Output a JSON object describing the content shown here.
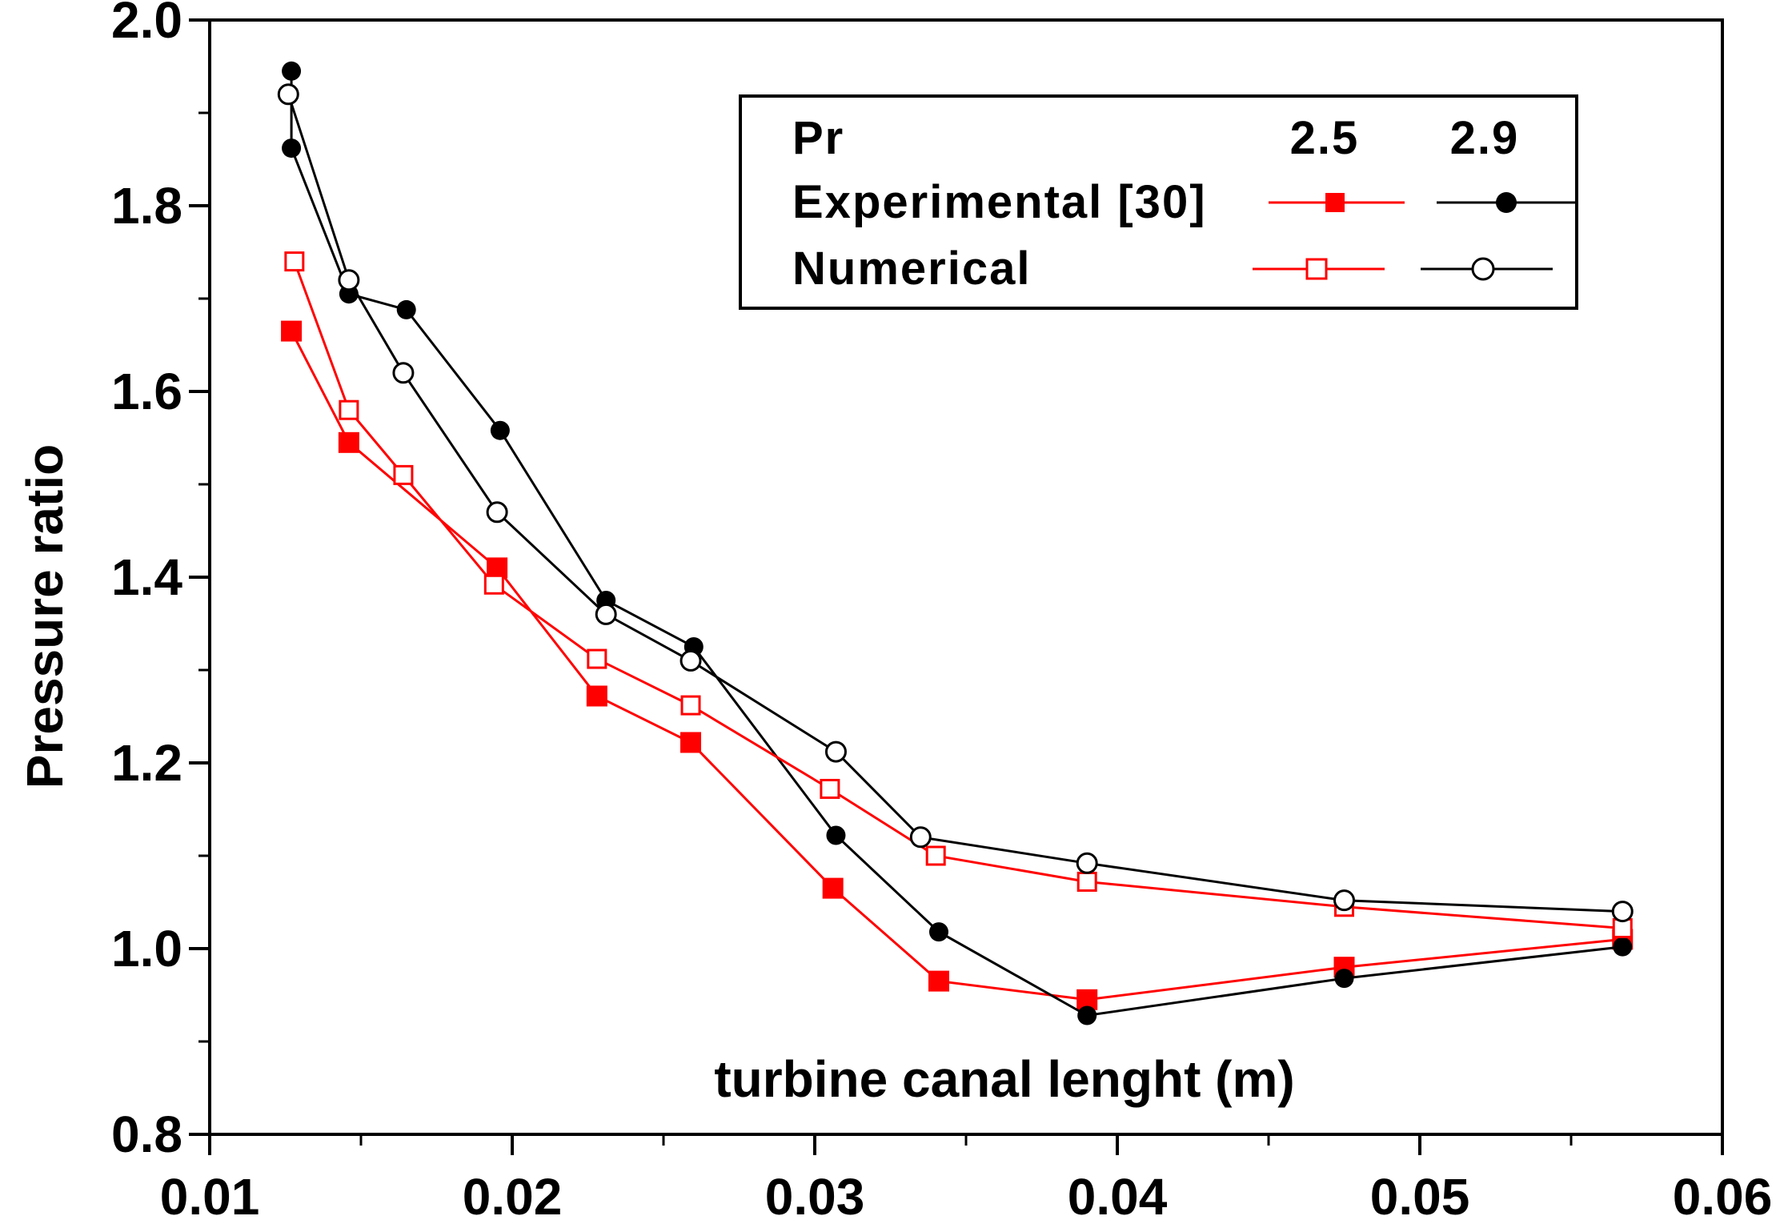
{
  "chart_data": {
    "type": "line",
    "title": "",
    "xlabel": "turbine canal lenght (m)",
    "ylabel": "Pressure ratio",
    "xlim": [
      0.01,
      0.06
    ],
    "ylim": [
      0.8,
      2.0
    ],
    "xticks": [
      "0.01",
      "0.02",
      "0.03",
      "0.04",
      "0.05",
      "0.06"
    ],
    "yticks": [
      "0.8",
      "1.0",
      "1.2",
      "1.4",
      "1.6",
      "1.8",
      "2.0"
    ],
    "grid": false,
    "legend": {
      "position": "top-right",
      "header_label": "Pr",
      "col1_label": "2.5",
      "col2_label": "2.9",
      "row1_label": "Experimental [30]",
      "row2_label": "Numerical"
    },
    "series": [
      {
        "name": "Experimental [30], Pr 2.5",
        "color": "#ff0000",
        "marker": "filled-square",
        "x": [
          0.0127,
          0.0146,
          0.0195,
          0.0228,
          0.0259,
          0.0306,
          0.0341,
          0.039,
          0.0475,
          0.0567
        ],
        "y": [
          1.665,
          1.545,
          1.41,
          1.272,
          1.222,
          1.065,
          0.965,
          0.945,
          0.98,
          1.01
        ]
      },
      {
        "name": "Experimental [30], Pr 2.9",
        "color": "#000000",
        "marker": "filled-circle",
        "x": [
          0.0127,
          0.0127,
          0.0146,
          0.0165,
          0.0196,
          0.0231,
          0.026,
          0.0307,
          0.0341,
          0.039,
          0.0475,
          0.0567
        ],
        "y": [
          1.945,
          1.862,
          1.705,
          1.688,
          1.558,
          1.375,
          1.325,
          1.122,
          1.018,
          0.928,
          0.968,
          1.002
        ]
      },
      {
        "name": "Numerical, Pr 2.5",
        "color": "#ff0000",
        "marker": "open-square",
        "x": [
          0.0128,
          0.0146,
          0.0164,
          0.0194,
          0.0228,
          0.0259,
          0.0305,
          0.034,
          0.039,
          0.0475,
          0.0567
        ],
        "y": [
          1.74,
          1.58,
          1.51,
          1.392,
          1.312,
          1.262,
          1.172,
          1.1,
          1.072,
          1.045,
          1.022
        ]
      },
      {
        "name": "Numerical, Pr 2.9",
        "color": "#000000",
        "marker": "open-circle",
        "x": [
          0.0126,
          0.0146,
          0.0164,
          0.0195,
          0.0231,
          0.0259,
          0.0307,
          0.0335,
          0.039,
          0.0475,
          0.0567
        ],
        "y": [
          1.92,
          1.72,
          1.62,
          1.47,
          1.36,
          1.31,
          1.212,
          1.12,
          1.092,
          1.052,
          1.04
        ]
      }
    ]
  }
}
